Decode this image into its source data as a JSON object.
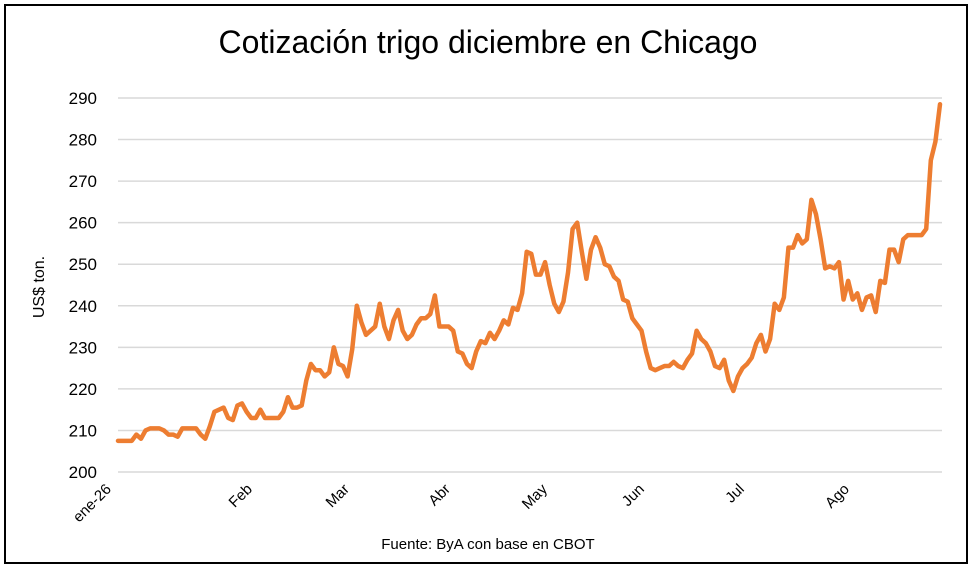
{
  "chart_data": {
    "type": "line",
    "title": "Cotización trigo diciembre en Chicago",
    "ylabel": "US$ ton.",
    "xlabel": "",
    "source": "Fuente: ByA con base en CBOT",
    "ylim": [
      200,
      290
    ],
    "yticks": [
      "200",
      "210",
      "220",
      "230",
      "240",
      "250",
      "260",
      "270",
      "280",
      "290"
    ],
    "grid": true,
    "line_color": "#ED7D31",
    "grid_color": "#D9D9D9",
    "x_tick_labels": [
      "ene-26",
      "Feb",
      "Mar",
      "Abr",
      "May",
      "Jun",
      "Jul",
      "Ago"
    ],
    "series": [
      {
        "values": [
          207.5,
          207.5,
          207.5,
          207.5,
          209,
          208,
          210,
          210.5,
          210.5,
          210.5,
          210,
          209,
          209,
          208.5,
          210.5,
          210.5,
          210.5,
          210.5,
          209,
          208,
          211,
          214.5,
          215,
          215.5,
          213,
          212.5,
          216,
          216.5,
          214.5,
          213,
          213,
          215,
          213,
          213,
          213,
          213,
          214.5,
          218,
          215.5,
          215.5,
          216,
          222,
          226,
          224.5,
          224.5,
          223,
          224,
          230,
          226,
          225.5,
          223,
          229.5,
          240,
          236,
          233,
          234,
          235,
          240.5,
          235,
          232,
          236.5,
          239,
          234,
          232,
          233,
          235.5,
          237,
          237,
          238,
          242.5,
          235,
          235,
          235,
          234,
          229,
          228.5,
          226,
          225,
          229,
          231.5,
          231,
          233.5,
          232,
          234,
          236.5,
          235.5,
          239.5,
          239,
          243,
          253,
          252.5,
          247.5,
          247.5,
          250.5,
          245,
          240.5,
          238.5,
          241,
          248,
          258.5,
          260,
          253,
          246.5,
          253.5,
          256.5,
          254,
          250,
          249.5,
          247,
          246,
          241.5,
          241,
          237,
          235.5,
          234,
          229,
          225,
          224.5,
          225,
          225.5,
          225.5,
          226.5,
          225.5,
          225,
          227,
          228.5,
          234,
          232,
          231,
          229,
          225.5,
          225,
          227,
          222,
          219.5,
          223,
          225,
          226,
          227.5,
          231,
          233,
          229,
          232,
          240.5,
          239,
          242,
          254,
          254,
          257,
          255,
          256,
          265.5,
          262,
          256,
          249,
          249.5,
          249,
          250.5,
          241.5,
          246,
          241.5,
          243,
          239,
          242,
          242.5,
          238.5,
          246,
          245.5,
          253.5,
          253.5,
          250.5,
          256,
          257,
          257,
          257,
          257,
          258.5,
          275,
          279.5,
          288.5
        ]
      }
    ]
  }
}
